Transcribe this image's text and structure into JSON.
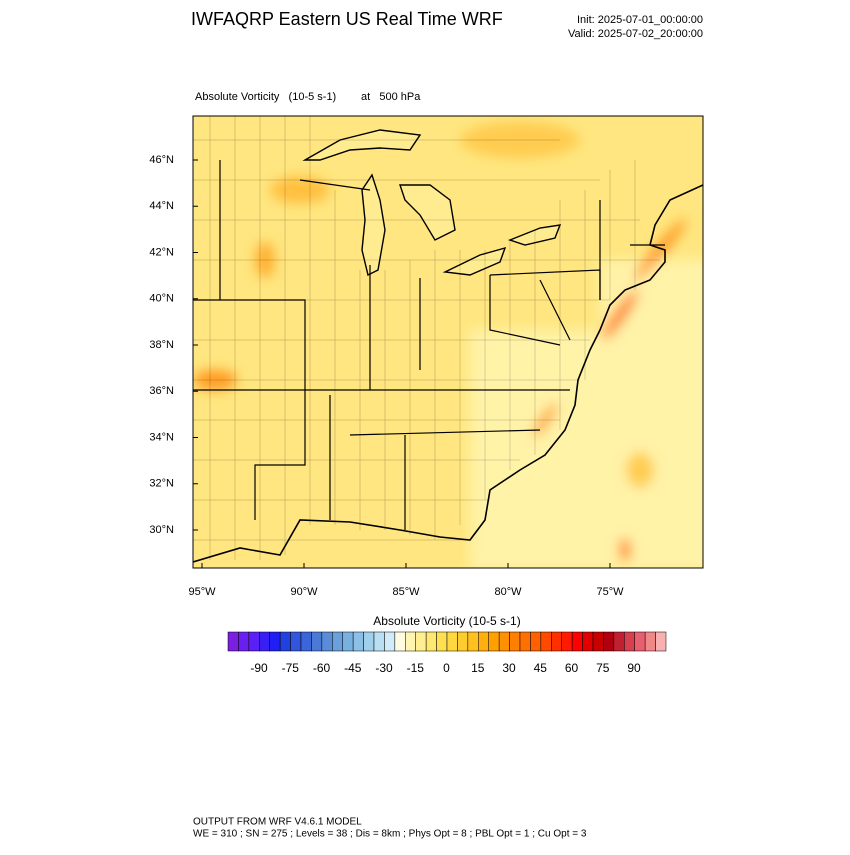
{
  "header": {
    "title": "IWFAQRP Eastern US Real Time WRF",
    "init": "Init: 2025-07-01_00:00:00",
    "valid": "Valid: 2025-07-02_20:00:00"
  },
  "map": {
    "field": "Absolute Vorticity   (10-5 s-1)",
    "level": "at   500 hPa",
    "lat_labels": [
      "46°N",
      "44°N",
      "42°N",
      "40°N",
      "38°N",
      "36°N",
      "34°N",
      "32°N",
      "30°N"
    ],
    "lon_labels": [
      "95°W",
      "90°W",
      "85°W",
      "80°W",
      "75°W"
    ]
  },
  "colorbar": {
    "title": "Absolute Vorticity  (10-5 s-1)",
    "ticks": [
      -90,
      -75,
      -60,
      -45,
      -30,
      -15,
      0,
      15,
      30,
      45,
      60,
      75,
      90
    ],
    "colors": [
      "#7b1fe0",
      "#6a1ff0",
      "#5a20f5",
      "#3a1ff5",
      "#1e1ef5",
      "#2040e0",
      "#3355dd",
      "#3b65d8",
      "#4a7ad5",
      "#5a8cd8",
      "#6aa0dc",
      "#78b0e0",
      "#8cc0e6",
      "#a0d0ec",
      "#b8dff2",
      "#d0ecf8",
      "#fffbe0",
      "#fff5b0",
      "#ffef90",
      "#ffe870",
      "#ffe050",
      "#ffd840",
      "#ffcc30",
      "#ffc020",
      "#ffb010",
      "#ffa000",
      "#ff9000",
      "#ff8000",
      "#ff7000",
      "#ff6000",
      "#ff4a00",
      "#ff3000",
      "#ff1a00",
      "#ff0000",
      "#e00000",
      "#c80000",
      "#b00010",
      "#c02030",
      "#d84050",
      "#e86070",
      "#f08888",
      "#f8b0b0"
    ]
  },
  "footer": {
    "line1": "OUTPUT FROM WRF V4.6.1 MODEL",
    "line2": "WE = 310 ; SN = 275 ; Levels = 38 ; Dis = 8km ; Phys Opt = 8 ; PBL Opt = 1 ; Cu Opt = 3"
  }
}
